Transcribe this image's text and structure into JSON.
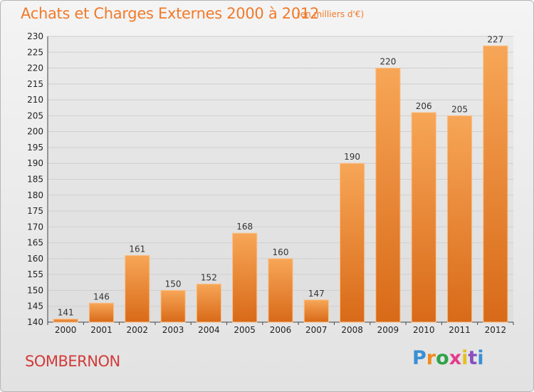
{
  "chart_data": {
    "type": "bar",
    "title": "Achats et Charges Externes 2000 à 2012",
    "subtitle": "(en milliers d'€)",
    "categories": [
      "2000",
      "2001",
      "2002",
      "2003",
      "2004",
      "2005",
      "2006",
      "2007",
      "2008",
      "2009",
      "2010",
      "2011",
      "2012"
    ],
    "values": [
      141,
      146,
      161,
      150,
      152,
      168,
      160,
      147,
      190,
      220,
      206,
      205,
      227
    ],
    "ylim": [
      140,
      230
    ],
    "yticks": [
      140,
      145,
      150,
      155,
      160,
      165,
      170,
      175,
      180,
      185,
      190,
      195,
      200,
      205,
      210,
      215,
      220,
      225,
      230
    ],
    "grid": true,
    "bar_color_top": "#f7a657",
    "bar_color_bottom": "#d86a18",
    "xlabel": "",
    "ylabel": ""
  },
  "footer": {
    "town": "SOMBERNON",
    "logo_letters": [
      "P",
      "r",
      "o",
      "x",
      "i",
      "t",
      "i"
    ]
  }
}
